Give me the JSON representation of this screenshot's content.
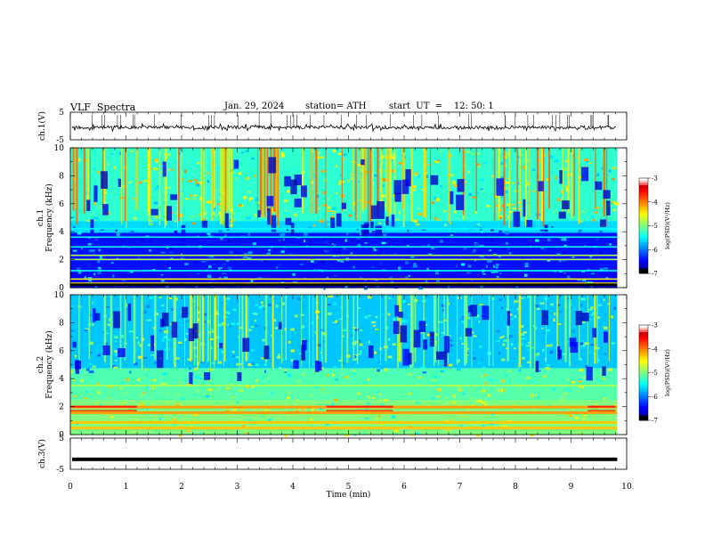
{
  "header": {
    "title": "VLF  Spectra",
    "date": "Jan. 29, 2024",
    "station": "station= ATH",
    "start": "start  UT  =    12: 50: 1"
  },
  "chart_data": [
    {
      "type": "line",
      "ylabel": "ch.1(V)",
      "yticks": [
        "5",
        "-5"
      ],
      "xlim": [
        0,
        10
      ],
      "ylim": [
        -5,
        5
      ],
      "series": [
        {
          "approx_level": -0.5,
          "noise_range": [
            -1.8,
            0.8
          ]
        }
      ]
    },
    {
      "type": "heatmap",
      "ylabel_line1": "ch.1",
      "ylabel_line2": "Frequency (kHz)",
      "yticks": [
        "0",
        "2",
        "4",
        "6",
        "8",
        "10"
      ],
      "ylim": [
        0,
        10
      ],
      "xlim": [
        0,
        10
      ],
      "colorbar": {
        "ticks": [
          "-3",
          "-4",
          "-5",
          "-6",
          "-7"
        ],
        "label": "log(PSD)(V²/Hz)",
        "range": [
          -7,
          -3
        ]
      },
      "bands_khz": [
        0.3,
        0.6,
        1.2,
        2.0,
        2.3,
        2.9,
        3.6,
        4.2
      ]
    },
    {
      "type": "heatmap",
      "ylabel_line1": "ch.2",
      "ylabel_line2": "Frequency (kHz)",
      "yticks": [
        "0",
        "2",
        "4",
        "6",
        "8",
        "10"
      ],
      "ylim": [
        0,
        10
      ],
      "xlim": [
        0,
        10
      ],
      "colorbar": {
        "ticks": [
          "-3",
          "-4",
          "-5",
          "-6",
          "-7"
        ],
        "label": "log(PSD)(V²/Hz)",
        "range": [
          -7,
          -3
        ]
      },
      "bands_khz": [
        0.5,
        0.9,
        1.6,
        2.0,
        3.5
      ]
    },
    {
      "type": "line",
      "ylabel": "ch.3(V)",
      "yticks": [
        "5",
        "-5"
      ],
      "xlim": [
        0,
        10
      ],
      "ylim": [
        -5,
        5
      ],
      "series": [
        {
          "approx_level": -1.8
        }
      ]
    }
  ],
  "xaxis": {
    "ticks": [
      "0",
      "1",
      "2",
      "3",
      "4",
      "5",
      "6",
      "7",
      "8",
      "9",
      "10"
    ],
    "label": "Time  (min)"
  }
}
